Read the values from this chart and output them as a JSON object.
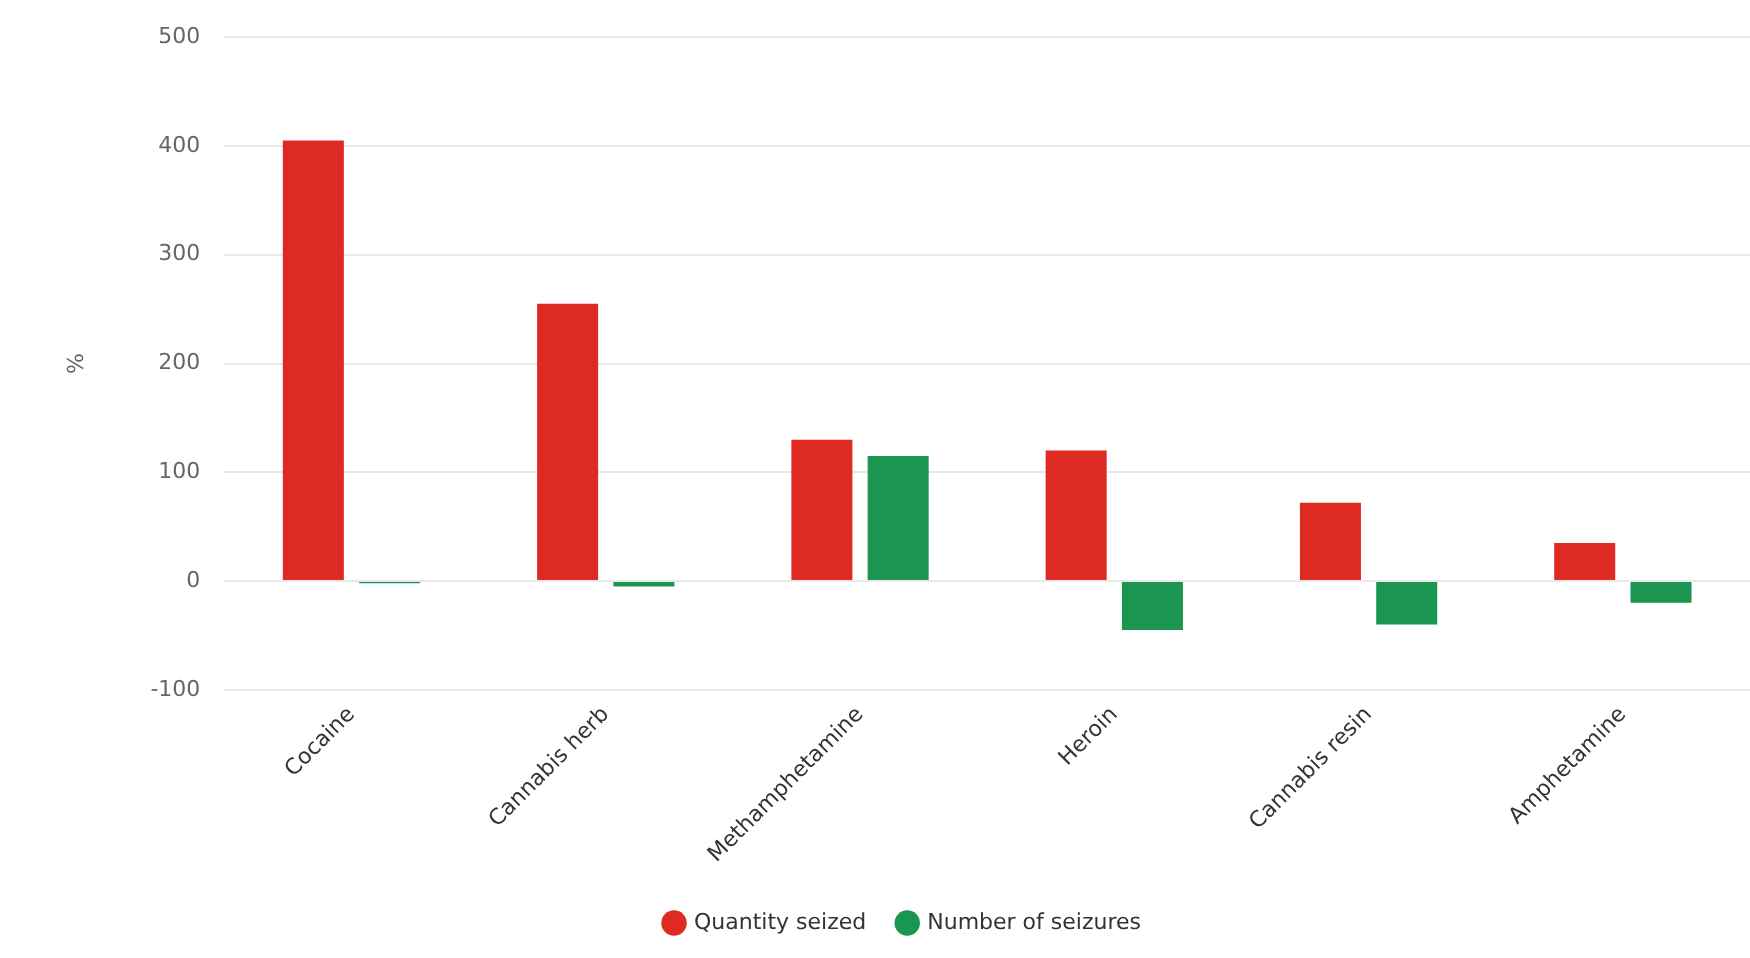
{
  "chart_data": {
    "type": "bar",
    "ylabel": "%",
    "categories": [
      "Cocaine",
      "Cannabis herb",
      "Methamphetamine",
      "Heroin",
      "Cannabis resin",
      "Amphetamine"
    ],
    "series": [
      {
        "name": "Quantity seized",
        "color": "#dd2a22",
        "values": [
          405,
          255,
          130,
          120,
          72,
          35
        ]
      },
      {
        "name": "Number of seizures",
        "color": "#1b9650",
        "values": [
          -2,
          -5,
          115,
          -45,
          -40,
          -20
        ]
      }
    ],
    "ylim": [
      -100,
      500
    ],
    "yticks": [
      -100,
      0,
      100,
      200,
      300,
      400,
      500
    ],
    "grid": "y",
    "legend": "bottom"
  }
}
